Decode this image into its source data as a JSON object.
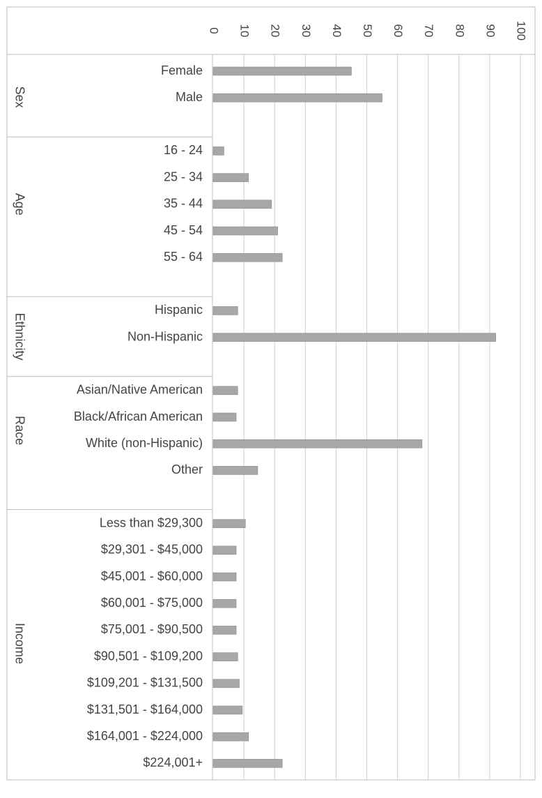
{
  "chart_data": {
    "type": "bar",
    "orientation": "horizontal",
    "xlim": [
      0,
      100
    ],
    "x_ticks": [
      "0",
      "10",
      "20",
      "30",
      "40",
      "50",
      "60",
      "70",
      "80",
      "90",
      "100"
    ],
    "grid": true,
    "groups": [
      {
        "name": "Sex",
        "categories": [
          "Female",
          "Male"
        ],
        "values": [
          45,
          55
        ]
      },
      {
        "name": "Age",
        "categories": [
          "16 - 24",
          "25 - 34",
          "35 - 44",
          "45 - 54",
          "55 - 64"
        ],
        "values": [
          3.5,
          11.5,
          19,
          21,
          22.5
        ]
      },
      {
        "name": "Ethnicity",
        "categories": [
          "Hispanic",
          "Non-Hispanic"
        ],
        "values": [
          8,
          92
        ]
      },
      {
        "name": "Race",
        "categories": [
          "Asian/Native American",
          "Black/African American",
          "White (non-Hispanic)",
          "Other"
        ],
        "values": [
          8,
          7.5,
          68,
          14.5
        ]
      },
      {
        "name": "Income",
        "categories": [
          "Less than $29,300",
          "$29,301 - $45,000",
          "$45,001 - $60,000",
          "$60,001 - $75,000",
          "$75,001 - $90,500",
          "$90,501 - $109,200",
          "$109,201 - $131,500",
          "$131,501 - $164,000",
          "$164,001 - $224,000",
          "$224,001+"
        ],
        "values": [
          10.5,
          7.5,
          7.5,
          7.5,
          7.5,
          8,
          8.5,
          9.5,
          11.5,
          22.5
        ]
      }
    ],
    "colors": {
      "bar": "#a7a7a7",
      "bar_edge": "#8e8e8e",
      "grid": "#cfcfcf",
      "border": "#bdbdbd",
      "text": "#444444"
    }
  }
}
